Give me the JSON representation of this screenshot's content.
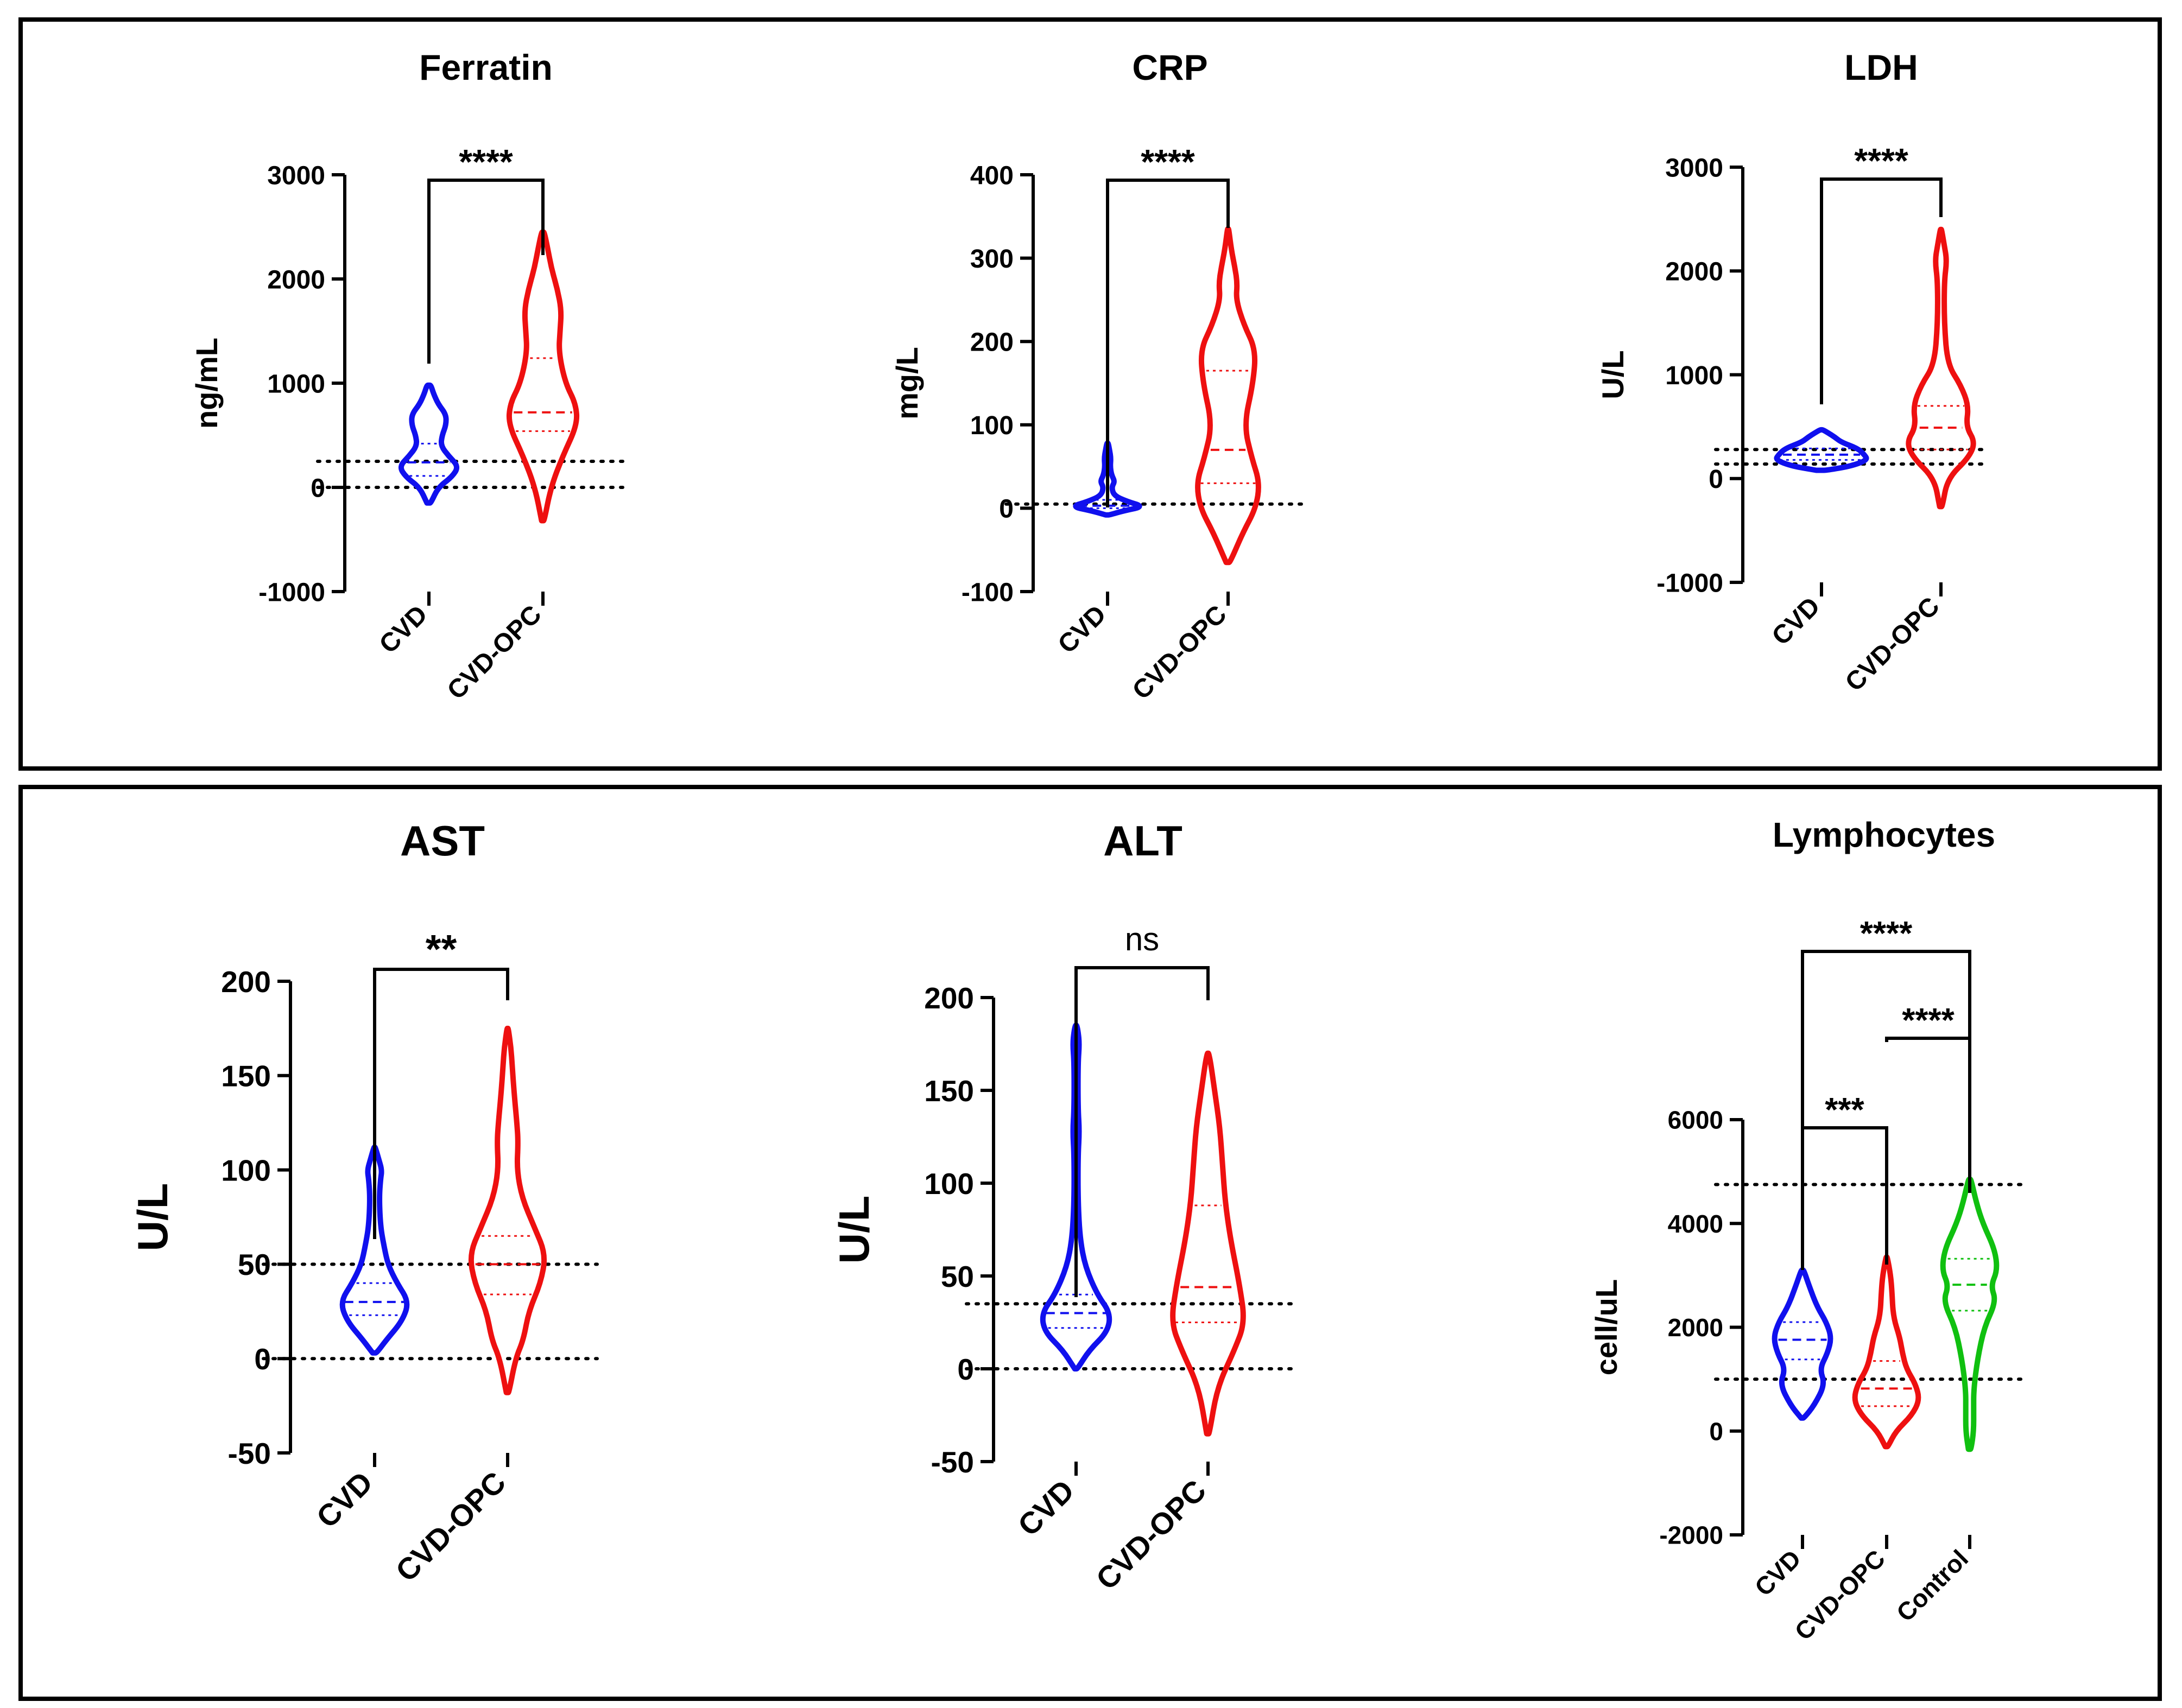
{
  "colors": {
    "CVD": "#1010ee",
    "CVD-OPC": "#ee1010",
    "Control": "#10c010",
    "reference": "#000000"
  },
  "chart_data": [
    {
      "id": "ferratin",
      "type": "violin",
      "title": "Ferratin",
      "ylabel": "ng/mL",
      "ylim": [
        -1000,
        3000
      ],
      "yticks": [
        3000,
        2000,
        1000,
        0,
        -1000
      ],
      "categories": [
        "CVD",
        "CVD-OPC"
      ],
      "reference_lines": [
        250,
        0
      ],
      "series": [
        {
          "category": "CVD",
          "color": "#1010ee",
          "min": -150,
          "max": 980,
          "median": 240,
          "q1": 110,
          "q3": 420,
          "profile": [
            [
              -150,
              0.03
            ],
            [
              0,
              0.14
            ],
            [
              100,
              0.35
            ],
            [
              200,
              0.45
            ],
            [
              300,
              0.3
            ],
            [
              400,
              0.18
            ],
            [
              500,
              0.2
            ],
            [
              600,
              0.26
            ],
            [
              700,
              0.26
            ],
            [
              800,
              0.14
            ],
            [
              900,
              0.07
            ],
            [
              980,
              0.03
            ]
          ]
        },
        {
          "category": "CVD-OPC",
          "color": "#ee1010",
          "min": -320,
          "max": 2450,
          "median": 720,
          "q1": 540,
          "q3": 1240,
          "profile": [
            [
              -320,
              0.02
            ],
            [
              0,
              0.12
            ],
            [
              300,
              0.3
            ],
            [
              600,
              0.52
            ],
            [
              800,
              0.5
            ],
            [
              1000,
              0.34
            ],
            [
              1300,
              0.24
            ],
            [
              1500,
              0.26
            ],
            [
              1700,
              0.28
            ],
            [
              1900,
              0.22
            ],
            [
              2100,
              0.13
            ],
            [
              2300,
              0.07
            ],
            [
              2450,
              0.02
            ]
          ]
        }
      ],
      "comparisons": [
        {
          "from": "CVD",
          "to": "CVD-OPC",
          "label": "****",
          "y": 2950
        }
      ]
    },
    {
      "id": "crp",
      "type": "violin",
      "title": "CRP",
      "ylabel": "mg/L",
      "ylim": [
        -100,
        400
      ],
      "yticks": [
        400,
        300,
        200,
        100,
        0,
        -100
      ],
      "categories": [
        "CVD",
        "CVD-OPC"
      ],
      "reference_lines": [
        5
      ],
      "series": [
        {
          "category": "CVD",
          "color": "#1010ee",
          "min": -8,
          "max": 78,
          "median": 3,
          "q1": 0,
          "q3": 10,
          "profile": [
            [
              -8,
              0.03
            ],
            [
              -3,
              0.25
            ],
            [
              2,
              0.55
            ],
            [
              8,
              0.3
            ],
            [
              15,
              0.1
            ],
            [
              25,
              0.06
            ],
            [
              32,
              0.11
            ],
            [
              40,
              0.06
            ],
            [
              50,
              0.04
            ],
            [
              60,
              0.05
            ],
            [
              70,
              0.03
            ],
            [
              78,
              0.01
            ]
          ]
        },
        {
          "category": "CVD-OPC",
          "color": "#ee1010",
          "min": -65,
          "max": 335,
          "median": 70,
          "q1": 30,
          "q3": 165,
          "profile": [
            [
              -65,
              0.03
            ],
            [
              -30,
              0.22
            ],
            [
              0,
              0.42
            ],
            [
              30,
              0.48
            ],
            [
              60,
              0.36
            ],
            [
              100,
              0.24
            ],
            [
              150,
              0.38
            ],
            [
              190,
              0.42
            ],
            [
              220,
              0.24
            ],
            [
              250,
              0.12
            ],
            [
              270,
              0.14
            ],
            [
              290,
              0.1
            ],
            [
              310,
              0.05
            ],
            [
              335,
              0.01
            ]
          ]
        }
      ],
      "comparisons": [
        {
          "from": "CVD",
          "to": "CVD-OPC",
          "label": "****",
          "y": 390
        }
      ]
    },
    {
      "id": "ldh",
      "type": "violin",
      "title": "LDH",
      "ylabel": "U/L",
      "ylim": [
        -1000,
        3000
      ],
      "yticks": [
        3000,
        2000,
        1000,
        0,
        -1000
      ],
      "categories": [
        "CVD",
        "CVD-OPC"
      ],
      "reference_lines": [
        280,
        140
      ],
      "series": [
        {
          "category": "CVD",
          "color": "#1010ee",
          "min": 80,
          "max": 470,
          "median": 230,
          "q1": 180,
          "q3": 290,
          "profile": [
            [
              80,
              0.08
            ],
            [
              120,
              0.45
            ],
            [
              180,
              0.7
            ],
            [
              230,
              0.65
            ],
            [
              290,
              0.55
            ],
            [
              350,
              0.3
            ],
            [
              400,
              0.2
            ],
            [
              440,
              0.1
            ],
            [
              470,
              0.02
            ]
          ]
        },
        {
          "category": "CVD-OPC",
          "color": "#ee1010",
          "min": -270,
          "max": 2400,
          "median": 490,
          "q1": 280,
          "q3": 700,
          "profile": [
            [
              -270,
              0.02
            ],
            [
              0,
              0.1
            ],
            [
              200,
              0.42
            ],
            [
              350,
              0.52
            ],
            [
              500,
              0.38
            ],
            [
              700,
              0.42
            ],
            [
              900,
              0.3
            ],
            [
              1100,
              0.1
            ],
            [
              1500,
              0.05
            ],
            [
              1900,
              0.05
            ],
            [
              2100,
              0.09
            ],
            [
              2250,
              0.05
            ],
            [
              2400,
              0.01
            ]
          ]
        }
      ],
      "comparisons": [
        {
          "from": "CVD",
          "to": "CVD-OPC",
          "label": "****",
          "y": 2900
        }
      ]
    },
    {
      "id": "ast",
      "type": "violin",
      "title": "AST",
      "ylabel": "U/L",
      "ylim": [
        -50,
        200
      ],
      "yticks": [
        200,
        150,
        100,
        50,
        0,
        -50
      ],
      "categories": [
        "CVD",
        "CVD-OPC"
      ],
      "reference_lines": [
        50,
        0
      ],
      "series": [
        {
          "category": "CVD",
          "color": "#1010ee",
          "min": 3,
          "max": 112,
          "median": 30,
          "q1": 23,
          "q3": 40,
          "profile": [
            [
              3,
              0.03
            ],
            [
              10,
              0.18
            ],
            [
              20,
              0.42
            ],
            [
              30,
              0.52
            ],
            [
              40,
              0.34
            ],
            [
              50,
              0.2
            ],
            [
              60,
              0.14
            ],
            [
              70,
              0.09
            ],
            [
              85,
              0.07
            ],
            [
              95,
              0.09
            ],
            [
              100,
              0.11
            ],
            [
              106,
              0.06
            ],
            [
              112,
              0.01
            ]
          ]
        },
        {
          "category": "CVD-OPC",
          "color": "#ee1010",
          "min": -18,
          "max": 175,
          "median": 50,
          "q1": 34,
          "q3": 65,
          "profile": [
            [
              -18,
              0.02
            ],
            [
              0,
              0.12
            ],
            [
              10,
              0.24
            ],
            [
              25,
              0.32
            ],
            [
              40,
              0.5
            ],
            [
              55,
              0.58
            ],
            [
              70,
              0.4
            ],
            [
              85,
              0.22
            ],
            [
              100,
              0.14
            ],
            [
              115,
              0.16
            ],
            [
              125,
              0.14
            ],
            [
              140,
              0.1
            ],
            [
              155,
              0.07
            ],
            [
              165,
              0.05
            ],
            [
              175,
              0.01
            ]
          ]
        }
      ],
      "comparisons": [
        {
          "from": "CVD",
          "to": "CVD-OPC",
          "label": "**",
          "y": 197
        }
      ]
    },
    {
      "id": "alt",
      "type": "violin",
      "title": "ALT",
      "ylabel": "U/L",
      "ylim": [
        -50,
        200
      ],
      "yticks": [
        200,
        150,
        100,
        50,
        0,
        -50
      ],
      "categories": [
        "CVD",
        "CVD-OPC"
      ],
      "reference_lines": [
        35,
        0
      ],
      "series": [
        {
          "category": "CVD",
          "color": "#1010ee",
          "min": 0,
          "max": 185,
          "median": 30,
          "q1": 22,
          "q3": 40,
          "profile": [
            [
              0,
              0.02
            ],
            [
              10,
              0.2
            ],
            [
              20,
              0.48
            ],
            [
              30,
              0.52
            ],
            [
              40,
              0.32
            ],
            [
              55,
              0.14
            ],
            [
              70,
              0.06
            ],
            [
              90,
              0.03
            ],
            [
              115,
              0.03
            ],
            [
              128,
              0.05
            ],
            [
              140,
              0.03
            ],
            [
              165,
              0.03
            ],
            [
              175,
              0.05
            ],
            [
              182,
              0.03
            ],
            [
              185,
              0.01
            ]
          ]
        },
        {
          "category": "CVD-OPC",
          "color": "#ee1010",
          "min": -35,
          "max": 170,
          "median": 44,
          "q1": 25,
          "q3": 88,
          "profile": [
            [
              -35,
              0.02
            ],
            [
              -10,
              0.14
            ],
            [
              10,
              0.4
            ],
            [
              25,
              0.56
            ],
            [
              45,
              0.48
            ],
            [
              70,
              0.34
            ],
            [
              90,
              0.26
            ],
            [
              110,
              0.22
            ],
            [
              130,
              0.18
            ],
            [
              150,
              0.1
            ],
            [
              165,
              0.04
            ],
            [
              170,
              0.01
            ]
          ]
        }
      ],
      "comparisons": [
        {
          "from": "CVD",
          "to": "CVD-OPC",
          "label": "ns",
          "y": 200
        }
      ]
    },
    {
      "id": "lymphocytes",
      "type": "violin",
      "title": "Lymphocytes",
      "ylabel": "cell/uL",
      "ylim": [
        -2000,
        6000
      ],
      "yticks": [
        6000,
        4000,
        2000,
        0,
        -2000
      ],
      "categories": [
        "CVD",
        "CVD-OPC",
        "Control"
      ],
      "reference_lines": [
        4750,
        1000
      ],
      "series": [
        {
          "category": "CVD",
          "color": "#1010ee",
          "min": 250,
          "max": 3100,
          "median": 1760,
          "q1": 1380,
          "q3": 2100,
          "profile": [
            [
              250,
              0.02
            ],
            [
              500,
              0.18
            ],
            [
              900,
              0.34
            ],
            [
              1200,
              0.26
            ],
            [
              1500,
              0.38
            ],
            [
              1800,
              0.44
            ],
            [
              2100,
              0.36
            ],
            [
              2400,
              0.22
            ],
            [
              2800,
              0.1
            ],
            [
              3100,
              0.02
            ]
          ]
        },
        {
          "category": "CVD-OPC",
          "color": "#ee1010",
          "min": -300,
          "max": 3350,
          "median": 820,
          "q1": 480,
          "q3": 1350,
          "profile": [
            [
              -300,
              0.02
            ],
            [
              0,
              0.14
            ],
            [
              300,
              0.38
            ],
            [
              600,
              0.5
            ],
            [
              900,
              0.44
            ],
            [
              1200,
              0.3
            ],
            [
              1500,
              0.24
            ],
            [
              1800,
              0.2
            ],
            [
              2200,
              0.1
            ],
            [
              2700,
              0.08
            ],
            [
              3000,
              0.06
            ],
            [
              3350,
              0.01
            ]
          ]
        },
        {
          "category": "Control",
          "color": "#10c010",
          "min": -350,
          "max": 4850,
          "median": 2820,
          "q1": 2320,
          "q3": 3320,
          "profile": [
            [
              -350,
              0.02
            ],
            [
              0,
              0.06
            ],
            [
              400,
              0.06
            ],
            [
              800,
              0.06
            ],
            [
              1400,
              0.12
            ],
            [
              2000,
              0.22
            ],
            [
              2500,
              0.4
            ],
            [
              2800,
              0.32
            ],
            [
              3100,
              0.42
            ],
            [
              3500,
              0.38
            ],
            [
              4000,
              0.2
            ],
            [
              4400,
              0.1
            ],
            [
              4850,
              0.02
            ]
          ]
        }
      ],
      "comparisons": [
        {
          "from": "CVD",
          "to": "Control",
          "label": "****",
          "y": 9000
        },
        {
          "from": "CVD-OPC",
          "to": "Control",
          "label": "****",
          "y": 7550
        },
        {
          "from": "CVD",
          "to": "CVD-OPC",
          "label": "***",
          "y": 5850
        }
      ]
    }
  ]
}
